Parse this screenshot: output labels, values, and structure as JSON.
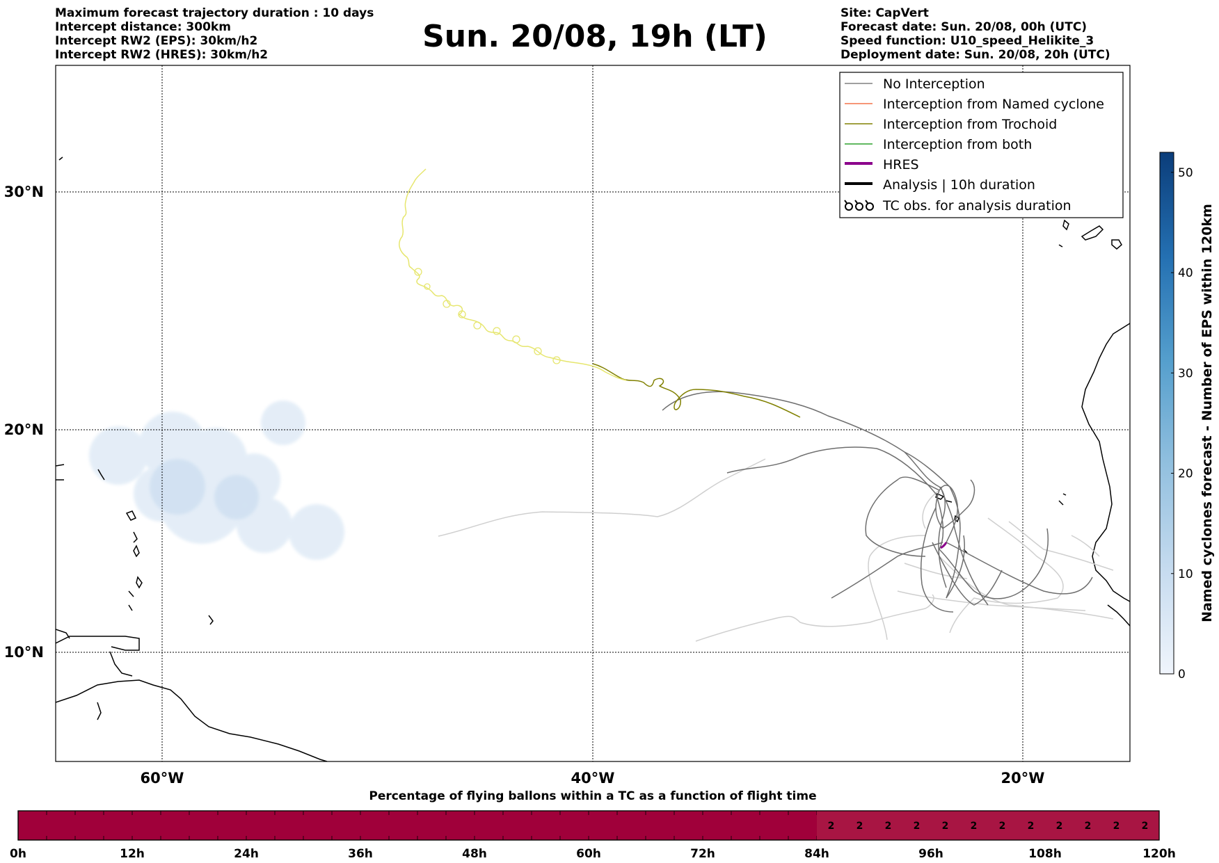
{
  "header_left": [
    "Maximum forecast trajectory duration : 10 days",
    "Intercept distance: 300km",
    "Intercept RW2 (EPS):  30km/h2",
    "Intercept RW2 (HRES): 30km/h2"
  ],
  "title": "Sun. 20/08, 19h (LT)",
  "header_right": [
    "Site: CapVert",
    "Forecast date: Sun. 20/08, 00h (UTC)",
    "Speed function: U10_speed_Helikite_3",
    "Deployment date: Sun. 20/08, 20h (UTC)"
  ],
  "map": {
    "lat_labels": [
      "30°N",
      "20°N",
      "10°N"
    ],
    "lon_labels": [
      "60°W",
      "40°W",
      "20°W"
    ]
  },
  "legend": [
    {
      "label": "No Interception",
      "color": "#808080",
      "icon": "thin-line"
    },
    {
      "label": "Interception from Named cyclone",
      "color": "#f4734a",
      "icon": "thin-line"
    },
    {
      "label": "Interception from Trochoid",
      "color": "#808000",
      "icon": "thin-line"
    },
    {
      "label": "Interception from both",
      "color": "#2ca02c",
      "icon": "thin-line"
    },
    {
      "label": "HRES",
      "color": "#8b008b",
      "icon": "thick-line"
    },
    {
      "label": "Analysis | 10h duration",
      "color": "#000000",
      "icon": "thick-line"
    },
    {
      "label": "TC obs. for analysis duration",
      "color": "#000000",
      "icon": "cyclone-symbols"
    }
  ],
  "colorbar": {
    "label": "Named cyclones forecast - Number of EPS within 120km",
    "ticks": [
      "0",
      "10",
      "20",
      "30",
      "40",
      "50"
    ],
    "min": 0,
    "max": 52,
    "color_low": "#f0f5fc",
    "color_high": "#0b3d7a"
  },
  "timeline": {
    "title": "Percentage of flying ballons within a TC as a function of flight time",
    "tick_labels": [
      "0h",
      "12h",
      "24h",
      "36h",
      "48h",
      "60h",
      "72h",
      "84h",
      "96h",
      "108h",
      "120h"
    ],
    "cell_values": [
      "2",
      "2",
      "2",
      "2",
      "2",
      "2",
      "2",
      "2",
      "2",
      "2",
      "2",
      "2"
    ],
    "fill_color": "#a0003a"
  },
  "chart_data": {
    "type": "map",
    "lat_range": [
      6,
      35
    ],
    "lon_range": [
      -65,
      -15
    ],
    "grid": true
  }
}
